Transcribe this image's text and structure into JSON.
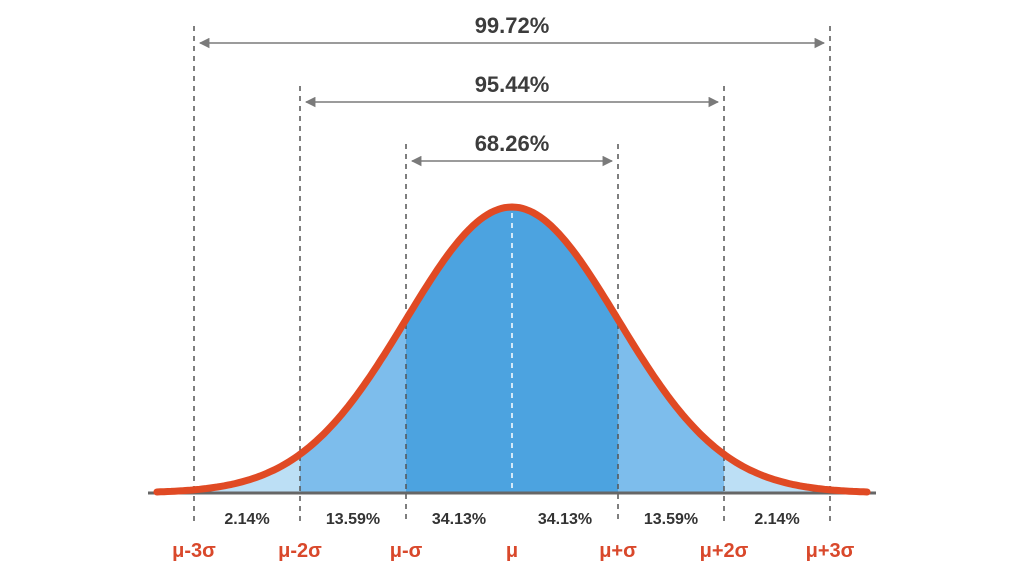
{
  "colors": {
    "curve": "#e04a24",
    "fill_center": "#4ca3e0",
    "fill_mid": "#7dbdec",
    "fill_tail": "#bcdff5",
    "axis": "#666666",
    "guide": "#555555",
    "arrow": "#7a7a7a",
    "tick_label": "#d9482b",
    "text": "#3c3c3c"
  },
  "spans": [
    {
      "from": -3,
      "to": 3,
      "label": "99.72%"
    },
    {
      "from": -2,
      "to": 2,
      "label": "95.44%"
    },
    {
      "from": -1,
      "to": 1,
      "label": "68.26%"
    }
  ],
  "bands": [
    {
      "from": -3,
      "to": -2,
      "label": "2.14%"
    },
    {
      "from": -2,
      "to": -1,
      "label": "13.59%"
    },
    {
      "from": -1,
      "to": 0,
      "label": "34.13%"
    },
    {
      "from": 0,
      "to": 1,
      "label": "34.13%"
    },
    {
      "from": 1,
      "to": 2,
      "label": "13.59%"
    },
    {
      "from": 2,
      "to": 3,
      "label": "2.14%"
    }
  ],
  "ticks": [
    {
      "sigma": -3,
      "label": "μ-3σ"
    },
    {
      "sigma": -2,
      "label": "μ-2σ"
    },
    {
      "sigma": -1,
      "label": "μ-σ"
    },
    {
      "sigma": 0,
      "label": "μ"
    },
    {
      "sigma": 1,
      "label": "μ+σ"
    },
    {
      "sigma": 2,
      "label": "μ+2σ"
    },
    {
      "sigma": 3,
      "label": "μ+3σ"
    }
  ]
}
